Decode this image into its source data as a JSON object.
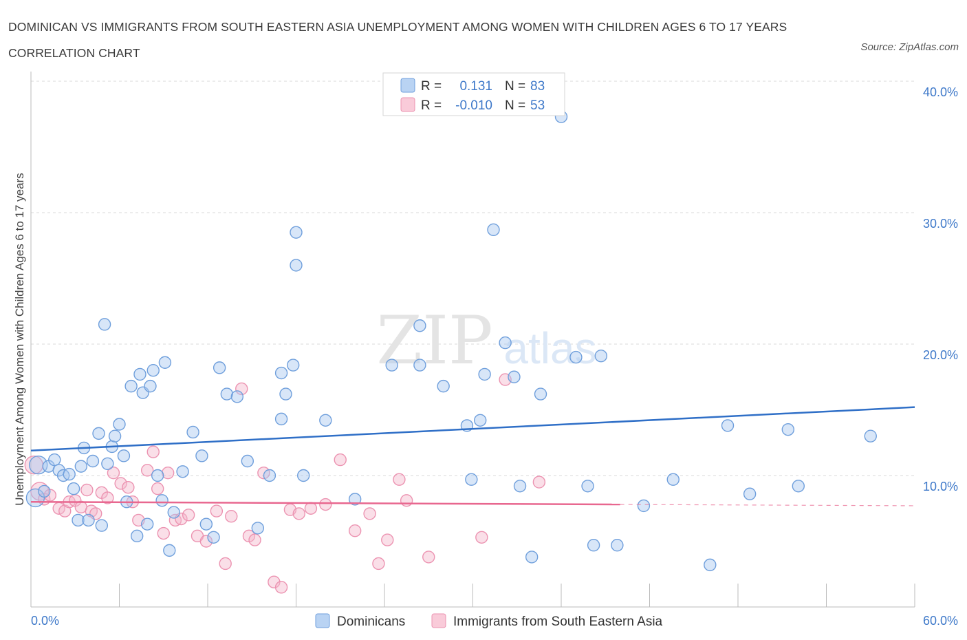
{
  "title": "DOMINICAN VS IMMIGRANTS FROM SOUTH EASTERN ASIA UNEMPLOYMENT AMONG WOMEN WITH CHILDREN AGES 6 TO 17 YEARS CORRELATION CHART",
  "source": "Source: ZipAtlas.com",
  "watermark": {
    "zip": "ZIP",
    "atlas": "atlas"
  },
  "colors": {
    "blue_fill": "#a9c8ef",
    "blue_stroke": "#6f9fdc",
    "blue_line": "#2f6fc7",
    "pink_fill": "#f4b9cc",
    "pink_stroke": "#ec93b1",
    "pink_line": "#e8678f",
    "tick_text": "#3d78c9",
    "grid": "#d8d8d8"
  },
  "legend": {
    "rows": [
      {
        "r_label": "R =",
        "r_value": "0.131",
        "n_label": "N =",
        "n_value": "83"
      },
      {
        "r_label": "R =",
        "r_value": "-0.010",
        "n_label": "N =",
        "n_value": "53"
      }
    ]
  },
  "chart_data": {
    "type": "scatter",
    "title": "DOMINICAN VS IMMIGRANTS FROM SOUTH EASTERN ASIA UNEMPLOYMENT AMONG WOMEN WITH CHILDREN AGES 6 TO 17 YEARS CORRELATION CHART",
    "xlabel": "",
    "ylabel": "Unemployment Among Women with Children Ages 6 to 17 years",
    "xlim": [
      0,
      60
    ],
    "ylim": [
      0,
      40
    ],
    "x_tick_labels": [
      "0.0%",
      "60.0%"
    ],
    "y_tick_labels": [
      "10.0%",
      "20.0%",
      "30.0%",
      "40.0%"
    ],
    "y_ticks": [
      10,
      20,
      30,
      40
    ],
    "grid": true,
    "legend_position": "top-center",
    "series": [
      {
        "name": "Dominicans",
        "r": 0.131,
        "n": 83,
        "trend": {
          "x": [
            0,
            60
          ],
          "y": [
            11.9,
            15.2
          ]
        },
        "points": [
          [
            0.3,
            8.3
          ],
          [
            0.5,
            10.8
          ],
          [
            0.9,
            8.8
          ],
          [
            1.2,
            10.7
          ],
          [
            1.6,
            11.2
          ],
          [
            1.9,
            10.4
          ],
          [
            2.2,
            10.0
          ],
          [
            2.6,
            10.1
          ],
          [
            2.9,
            9.0
          ],
          [
            3.2,
            6.6
          ],
          [
            3.4,
            10.7
          ],
          [
            3.6,
            12.1
          ],
          [
            3.9,
            6.6
          ],
          [
            4.2,
            11.1
          ],
          [
            4.6,
            13.2
          ],
          [
            4.8,
            6.2
          ],
          [
            5.0,
            21.5
          ],
          [
            5.2,
            10.9
          ],
          [
            5.5,
            12.2
          ],
          [
            5.7,
            13.0
          ],
          [
            6.0,
            13.9
          ],
          [
            6.3,
            11.5
          ],
          [
            6.5,
            8.0
          ],
          [
            6.8,
            16.8
          ],
          [
            7.2,
            5.4
          ],
          [
            7.4,
            17.7
          ],
          [
            7.6,
            16.3
          ],
          [
            7.9,
            6.3
          ],
          [
            8.1,
            16.8
          ],
          [
            8.3,
            18.0
          ],
          [
            8.6,
            10.0
          ],
          [
            8.9,
            8.1
          ],
          [
            9.1,
            18.6
          ],
          [
            9.4,
            4.3
          ],
          [
            9.7,
            7.2
          ],
          [
            10.3,
            10.3
          ],
          [
            11.0,
            13.3
          ],
          [
            11.6,
            11.5
          ],
          [
            11.9,
            6.3
          ],
          [
            12.4,
            5.3
          ],
          [
            12.8,
            18.2
          ],
          [
            13.3,
            16.2
          ],
          [
            14.0,
            16.0
          ],
          [
            14.7,
            11.1
          ],
          [
            15.4,
            6.0
          ],
          [
            16.2,
            10.0
          ],
          [
            17.0,
            14.3
          ],
          [
            17.3,
            16.2
          ],
          [
            17.8,
            18.4
          ],
          [
            17.0,
            17.8
          ],
          [
            18.0,
            28.5
          ],
          [
            18.0,
            26.0
          ],
          [
            18.5,
            10.0
          ],
          [
            20.0,
            14.2
          ],
          [
            22.0,
            8.2
          ],
          [
            24.5,
            18.4
          ],
          [
            26.4,
            21.4
          ],
          [
            26.4,
            18.4
          ],
          [
            28.0,
            16.8
          ],
          [
            29.6,
            13.8
          ],
          [
            29.9,
            9.7
          ],
          [
            30.5,
            14.2
          ],
          [
            30.8,
            17.7
          ],
          [
            31.4,
            28.7
          ],
          [
            32.2,
            20.1
          ],
          [
            33.2,
            9.2
          ],
          [
            34.0,
            3.8
          ],
          [
            34.6,
            16.2
          ],
          [
            36.0,
            37.3
          ],
          [
            37.0,
            19.0
          ],
          [
            37.8,
            9.2
          ],
          [
            38.7,
            19.1
          ],
          [
            39.8,
            4.7
          ],
          [
            41.6,
            7.7
          ],
          [
            43.6,
            9.7
          ],
          [
            46.1,
            3.2
          ],
          [
            47.3,
            13.8
          ],
          [
            48.8,
            8.6
          ],
          [
            51.4,
            13.5
          ],
          [
            52.1,
            9.2
          ],
          [
            57.0,
            13.0
          ],
          [
            38.2,
            4.7
          ],
          [
            32.8,
            17.5
          ]
        ]
      },
      {
        "name": "Immigrants from South Eastern Asia",
        "r": -0.01,
        "n": 53,
        "trend": {
          "x": [
            0,
            40
          ],
          "y": [
            8.0,
            7.8
          ]
        },
        "trend_dashed": {
          "x": [
            40,
            60
          ],
          "y": [
            7.8,
            7.7
          ]
        },
        "points": [
          [
            0.2,
            10.8
          ],
          [
            0.6,
            8.8
          ],
          [
            0.9,
            8.2
          ],
          [
            1.3,
            8.5
          ],
          [
            1.9,
            7.5
          ],
          [
            2.3,
            7.3
          ],
          [
            2.6,
            8.0
          ],
          [
            3.0,
            8.1
          ],
          [
            3.4,
            7.6
          ],
          [
            3.8,
            8.9
          ],
          [
            4.1,
            7.3
          ],
          [
            4.4,
            7.1
          ],
          [
            4.8,
            8.7
          ],
          [
            5.2,
            8.3
          ],
          [
            5.6,
            10.2
          ],
          [
            6.1,
            9.4
          ],
          [
            6.6,
            9.1
          ],
          [
            6.9,
            8.0
          ],
          [
            7.3,
            6.6
          ],
          [
            7.9,
            10.4
          ],
          [
            8.3,
            11.8
          ],
          [
            8.6,
            9.0
          ],
          [
            9.0,
            5.6
          ],
          [
            9.3,
            10.2
          ],
          [
            9.8,
            6.6
          ],
          [
            10.2,
            6.7
          ],
          [
            10.7,
            7.0
          ],
          [
            11.3,
            5.4
          ],
          [
            11.9,
            5.0
          ],
          [
            12.6,
            7.3
          ],
          [
            13.2,
            3.3
          ],
          [
            13.6,
            6.9
          ],
          [
            14.3,
            16.6
          ],
          [
            14.8,
            5.4
          ],
          [
            15.2,
            5.1
          ],
          [
            15.8,
            10.2
          ],
          [
            16.5,
            1.9
          ],
          [
            17.0,
            1.5
          ],
          [
            17.6,
            7.4
          ],
          [
            18.2,
            7.1
          ],
          [
            19.0,
            7.5
          ],
          [
            20.0,
            7.8
          ],
          [
            21.0,
            11.2
          ],
          [
            22.0,
            5.8
          ],
          [
            23.0,
            7.1
          ],
          [
            23.6,
            3.3
          ],
          [
            24.2,
            5.1
          ],
          [
            25.0,
            9.7
          ],
          [
            25.5,
            8.1
          ],
          [
            27.0,
            3.8
          ],
          [
            30.6,
            5.3
          ],
          [
            32.2,
            17.3
          ],
          [
            34.5,
            9.5
          ]
        ]
      }
    ]
  }
}
